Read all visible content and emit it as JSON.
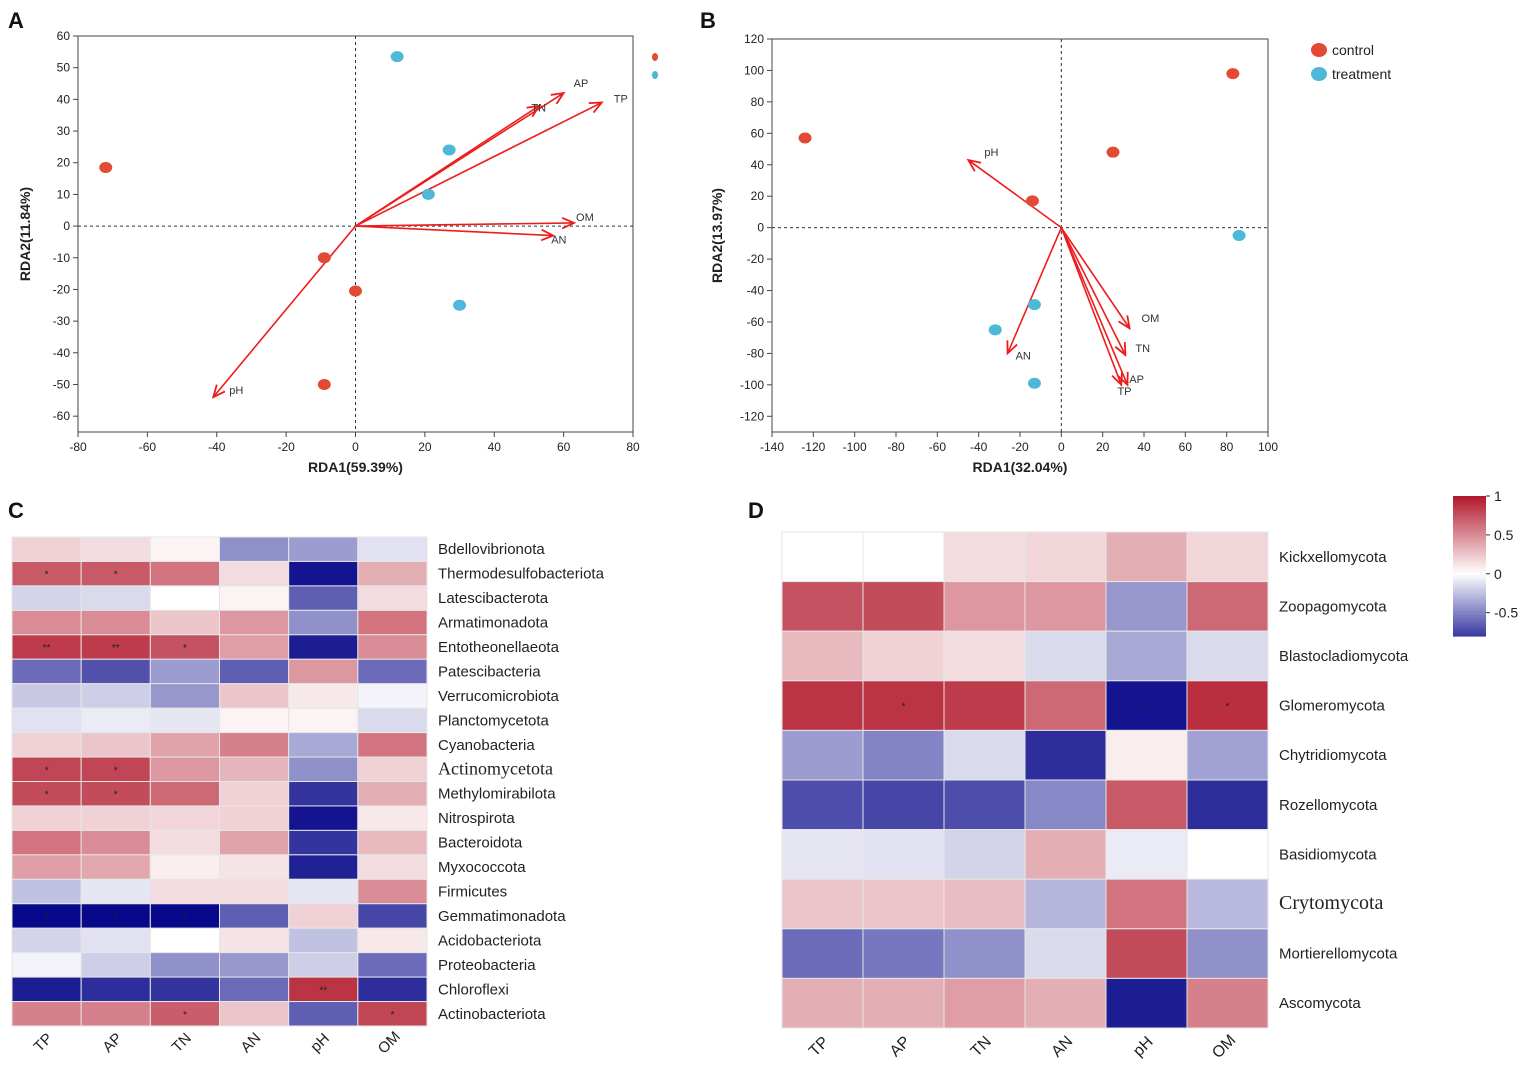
{
  "panel_labels": [
    "A",
    "B",
    "C",
    "D"
  ],
  "colors": {
    "control": "#e34a33",
    "treatment": "#4db8d8",
    "arrow": "#ee1c1c",
    "heat_pos": "#b2182b",
    "heat_neg": "#08088a",
    "heat_mid": "#ffffff"
  },
  "chart_data": [
    {
      "panel": "A",
      "type": "scatter",
      "subtype": "rda-biplot",
      "xlabel": "RDA1(59.39%)",
      "ylabel": "RDA2(11.84%)",
      "xlim": [
        -80,
        80
      ],
      "ylim": [
        -65,
        60
      ],
      "xticks": [
        -80,
        -60,
        -40,
        -20,
        0,
        20,
        40,
        60,
        80
      ],
      "yticks": [
        60,
        50,
        40,
        30,
        20,
        10,
        0,
        -10,
        -20,
        -30,
        -40,
        -50,
        -60
      ],
      "series": [
        {
          "name": "control",
          "points": [
            [
              -72,
              18.5
            ],
            [
              -9,
              -10
            ],
            [
              0,
              -20.5
            ],
            [
              -9,
              -50
            ]
          ]
        },
        {
          "name": "treatment",
          "points": [
            [
              12,
              53.5
            ],
            [
              27,
              24
            ],
            [
              21,
              10
            ],
            [
              30,
              -25
            ]
          ]
        }
      ],
      "vectors": [
        {
          "label": "AP",
          "x": 60,
          "y": 42
        },
        {
          "label": "TN",
          "x": 53,
          "y": 38
        },
        {
          "label": "TP",
          "x": 71,
          "y": 39
        },
        {
          "label": "OM",
          "x": 63,
          "y": 1
        },
        {
          "label": "AN",
          "x": 57,
          "y": -3
        },
        {
          "label": "pH",
          "x": -41,
          "y": -54
        }
      ]
    },
    {
      "panel": "B",
      "type": "scatter",
      "subtype": "rda-biplot",
      "xlabel": "RDA1(32.04%)",
      "ylabel": "RDA2(13.97%)",
      "xlim": [
        -140,
        100
      ],
      "ylim": [
        -130,
        120
      ],
      "xticks": [
        -140,
        -120,
        -100,
        -80,
        -60,
        -40,
        -20,
        0,
        20,
        40,
        60,
        80,
        100
      ],
      "yticks": [
        120,
        100,
        80,
        60,
        40,
        20,
        0,
        -20,
        -40,
        -60,
        -80,
        -100,
        -120
      ],
      "legend": [
        "control",
        "treatment"
      ],
      "series": [
        {
          "name": "control",
          "points": [
            [
              -124,
              57
            ],
            [
              -14,
              17
            ],
            [
              25,
              48
            ],
            [
              83,
              98
            ]
          ]
        },
        {
          "name": "treatment",
          "points": [
            [
              -32,
              -65
            ],
            [
              -13,
              -49
            ],
            [
              -13,
              -99
            ],
            [
              86,
              -5
            ]
          ]
        }
      ],
      "vectors": [
        {
          "label": "pH",
          "x": -45,
          "y": 43
        },
        {
          "label": "AN",
          "x": -26,
          "y": -80
        },
        {
          "label": "OM",
          "x": 33,
          "y": -64
        },
        {
          "label": "TN",
          "x": 31,
          "y": -81
        },
        {
          "label": "AP",
          "x": 29,
          "y": -100
        },
        {
          "label": "TP",
          "x": 32,
          "y": -100
        }
      ]
    },
    {
      "panel": "C",
      "type": "heatmap",
      "columns": [
        "TP",
        "AP",
        "TN",
        "AN",
        "pH",
        "OM"
      ],
      "rows": [
        {
          "name": "Bdellovibrionota",
          "v": [
            0.2,
            0.15,
            0.05,
            -0.45,
            -0.4,
            -0.12
          ],
          "sig": [
            "",
            "",
            "",
            "",
            "",
            ""
          ]
        },
        {
          "name": "Thermodesulfobacteriota",
          "v": [
            0.72,
            0.72,
            0.6,
            0.15,
            -0.95,
            0.35
          ],
          "sig": [
            "*",
            "*",
            "",
            "",
            "",
            ""
          ]
        },
        {
          "name": "Latescibacterota",
          "v": [
            -0.18,
            -0.15,
            0.0,
            0.05,
            -0.65,
            0.15
          ],
          "sig": [
            "",
            "",
            "",
            "",
            "",
            ""
          ]
        },
        {
          "name": "Armatimonadota",
          "v": [
            0.5,
            0.5,
            0.25,
            0.45,
            -0.45,
            0.6
          ],
          "sig": [
            "",
            "",
            "",
            "",
            "",
            ""
          ]
        },
        {
          "name": "Entotheonellaeota",
          "v": [
            0.85,
            0.85,
            0.75,
            0.42,
            -0.92,
            0.5
          ],
          "sig": [
            "**",
            "**",
            "*",
            "",
            "",
            ""
          ]
        },
        {
          "name": "Patescibacteria",
          "v": [
            -0.6,
            -0.7,
            -0.4,
            -0.65,
            0.45,
            -0.6
          ],
          "sig": [
            "",
            "",
            "",
            "",
            "",
            ""
          ]
        },
        {
          "name": "Verrucomicrobiota",
          "v": [
            -0.22,
            -0.2,
            -0.42,
            0.25,
            0.1,
            -0.05
          ],
          "sig": [
            "",
            "",
            "",
            "",
            "",
            ""
          ]
        },
        {
          "name": "Planctomycetota",
          "v": [
            -0.12,
            -0.08,
            -0.1,
            0.05,
            0.05,
            -0.15
          ],
          "sig": [
            "",
            "",
            "",
            "",
            "",
            ""
          ]
        },
        {
          "name": "Cyanobacteria",
          "v": [
            0.2,
            0.25,
            0.4,
            0.55,
            -0.35,
            0.6
          ],
          "sig": [
            "",
            "",
            "",
            "",
            "",
            ""
          ]
        },
        {
          "name": "Actinomycetota",
          "v": [
            0.8,
            0.8,
            0.45,
            0.32,
            -0.45,
            0.2
          ],
          "sig": [
            "*",
            "*",
            "",
            "",
            "",
            ""
          ],
          "serif": true
        },
        {
          "name": "Methylomirabilota",
          "v": [
            0.78,
            0.78,
            0.65,
            0.2,
            -0.82,
            0.35
          ],
          "sig": [
            "*",
            "*",
            "",
            "",
            "",
            ""
          ]
        },
        {
          "name": "Nitrospirota",
          "v": [
            0.2,
            0.2,
            0.18,
            0.2,
            -0.95,
            0.1
          ],
          "sig": [
            "",
            "",
            "",
            "",
            "",
            ""
          ]
        },
        {
          "name": "Bacteroidota",
          "v": [
            0.6,
            0.5,
            0.15,
            0.4,
            -0.82,
            0.3
          ],
          "sig": [
            "",
            "",
            "",
            "",
            "",
            ""
          ]
        },
        {
          "name": "Myxococcota",
          "v": [
            0.42,
            0.38,
            0.08,
            0.12,
            -0.9,
            0.15
          ],
          "sig": [
            "",
            "",
            "",
            "",
            "",
            ""
          ]
        },
        {
          "name": "Firmicutes",
          "v": [
            -0.25,
            -0.1,
            0.15,
            0.15,
            -0.1,
            0.5
          ],
          "sig": [
            "",
            "",
            "",
            "",
            "",
            ""
          ]
        },
        {
          "name": "Gemmatimonadota",
          "v": [
            -1.0,
            -1.0,
            -1.0,
            -0.65,
            0.2,
            -0.75
          ],
          "sig": [
            "*",
            "*",
            "*",
            "",
            "",
            ""
          ]
        },
        {
          "name": "Acidobacteriota",
          "v": [
            -0.18,
            -0.12,
            0.0,
            0.12,
            -0.25,
            0.1
          ],
          "sig": [
            "",
            "",
            "",
            "",
            "",
            ""
          ]
        },
        {
          "name": "Proteobacteria",
          "v": [
            -0.05,
            -0.2,
            -0.45,
            -0.42,
            -0.2,
            -0.6
          ],
          "sig": [
            "",
            "",
            "",
            "",
            "",
            ""
          ]
        },
        {
          "name": "Chloroflexi",
          "v": [
            -0.92,
            -0.85,
            -0.82,
            -0.6,
            0.88,
            -0.85
          ],
          "sig": [
            "",
            "",
            "",
            "",
            "**",
            ""
          ]
        },
        {
          "name": "Actinobacteriota",
          "v": [
            0.55,
            0.55,
            0.7,
            0.25,
            -0.65,
            0.8
          ],
          "sig": [
            "",
            "",
            "*",
            "",
            "",
            "*"
          ]
        }
      ]
    },
    {
      "panel": "D",
      "type": "heatmap",
      "columns": [
        "TP",
        "AP",
        "TN",
        "AN",
        "pH",
        "OM"
      ],
      "colorbar": {
        "ticks": [
          "1",
          "0.5",
          "0",
          "-0.5"
        ],
        "range": [
          -0.8,
          1
        ]
      },
      "rows": [
        {
          "name": "Kickxellomycota",
          "v": [
            0.0,
            0.0,
            0.15,
            0.18,
            0.35,
            0.18
          ],
          "sig": [
            "",
            "",
            "",
            "",
            "",
            ""
          ]
        },
        {
          "name": "Zoopagomycota",
          "v": [
            0.75,
            0.78,
            0.45,
            0.45,
            -0.42,
            0.65
          ],
          "sig": [
            "",
            "",
            "",
            "",
            "",
            ""
          ]
        },
        {
          "name": "Blastocladiomycota",
          "v": [
            0.3,
            0.2,
            0.15,
            -0.15,
            -0.35,
            -0.15
          ],
          "sig": [
            "",
            "",
            "",
            "",
            "",
            ""
          ]
        },
        {
          "name": "Glomeromycota",
          "v": [
            0.88,
            0.88,
            0.85,
            0.65,
            -0.95,
            0.9
          ],
          "sig": [
            "",
            "*",
            "",
            "",
            "*",
            "*"
          ]
        },
        {
          "name": "Chytridiomycota",
          "v": [
            -0.4,
            -0.5,
            -0.15,
            -0.85,
            0.08,
            -0.38
          ],
          "sig": [
            "",
            "",
            "",
            "",
            "",
            ""
          ]
        },
        {
          "name": "Rozellomycota",
          "v": [
            -0.72,
            -0.75,
            -0.72,
            -0.48,
            0.72,
            -0.85
          ],
          "sig": [
            "",
            "",
            "",
            "",
            "",
            ""
          ]
        },
        {
          "name": "Basidiomycota",
          "v": [
            -0.1,
            -0.12,
            -0.18,
            0.35,
            -0.08,
            0.0
          ],
          "sig": [
            "",
            "",
            "",
            "",
            "",
            ""
          ]
        },
        {
          "name": "Crytomycota",
          "v": [
            0.25,
            0.25,
            0.28,
            -0.3,
            0.6,
            -0.28
          ],
          "sig": [
            "",
            "",
            "",
            "",
            "",
            ""
          ],
          "serif": true
        },
        {
          "name": "Mortierellomycota",
          "v": [
            -0.6,
            -0.55,
            -0.45,
            -0.15,
            0.78,
            -0.45
          ],
          "sig": [
            "",
            "",
            "",
            "",
            "",
            ""
          ]
        },
        {
          "name": "Ascomycota",
          "v": [
            0.35,
            0.35,
            0.42,
            0.35,
            -0.92,
            0.55
          ],
          "sig": [
            "",
            "",
            "",
            "",
            "",
            ""
          ]
        }
      ]
    }
  ]
}
